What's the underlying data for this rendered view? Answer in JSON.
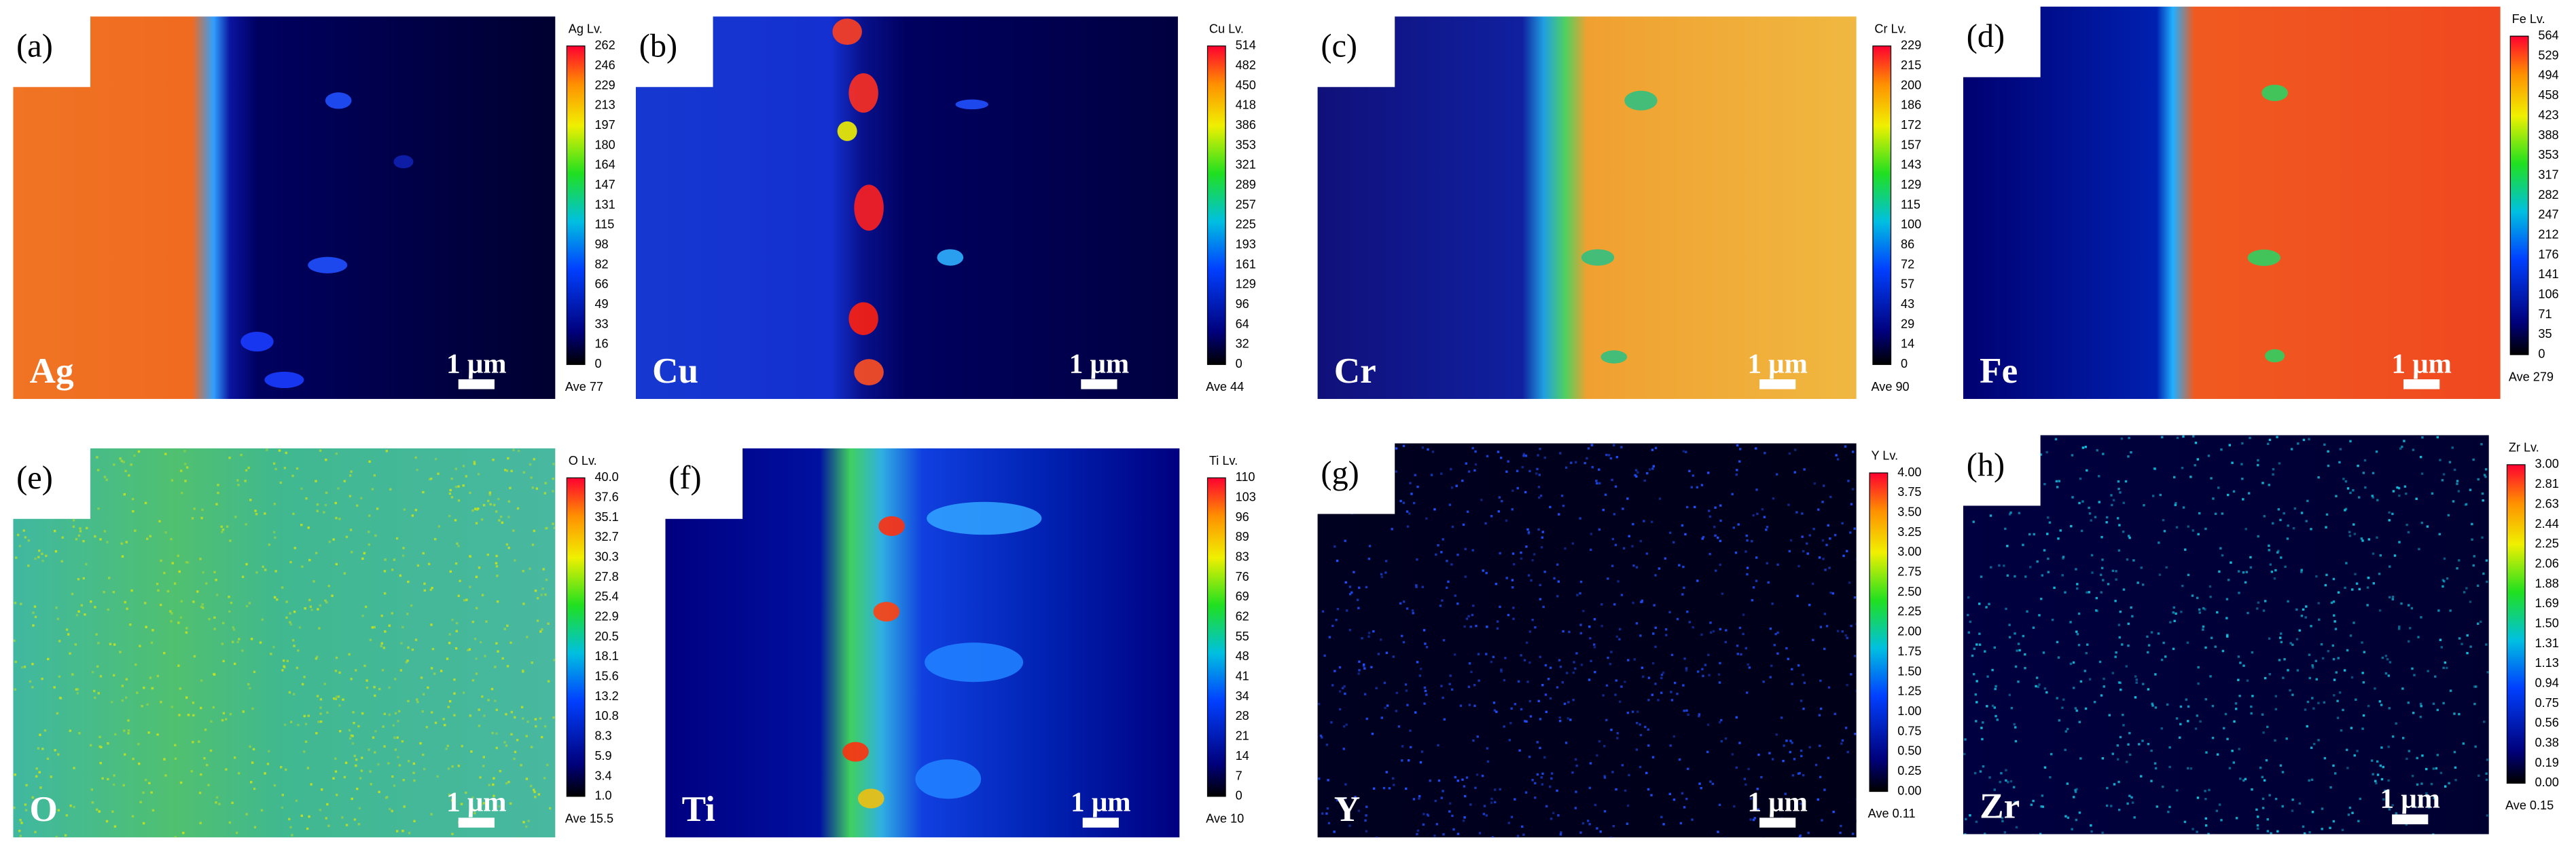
{
  "panels": [
    {
      "label": "(a)",
      "element": "Ag",
      "colorbar": {
        "title": "Ag Lv.",
        "ticks": [
          "262",
          "246",
          "229",
          "213",
          "197",
          "180",
          "164",
          "147",
          "131",
          "115",
          "98",
          "82",
          "66",
          "49",
          "33",
          "16",
          "0"
        ]
      },
      "average": "Ave 77",
      "scale_bar": "1 μm"
    },
    {
      "label": "(b)",
      "element": "Cu",
      "colorbar": {
        "title": "Cu Lv.",
        "ticks": [
          "514",
          "482",
          "450",
          "418",
          "386",
          "353",
          "321",
          "289",
          "257",
          "225",
          "193",
          "161",
          "129",
          "96",
          "64",
          "32",
          "0"
        ]
      },
      "average": "Ave 44",
      "scale_bar": "1 μm"
    },
    {
      "label": "(c)",
      "element": "Cr",
      "colorbar": {
        "title": "Cr Lv.",
        "ticks": [
          "229",
          "215",
          "200",
          "186",
          "172",
          "157",
          "143",
          "129",
          "115",
          "100",
          "86",
          "72",
          "57",
          "43",
          "29",
          "14",
          "0"
        ]
      },
      "average": "Ave 90",
      "scale_bar": "1 μm"
    },
    {
      "label": "(d)",
      "element": "Fe",
      "colorbar": {
        "title": "Fe Lv.",
        "ticks": [
          "564",
          "529",
          "494",
          "458",
          "423",
          "388",
          "353",
          "317",
          "282",
          "247",
          "212",
          "176",
          "141",
          "106",
          "71",
          "35",
          "0"
        ]
      },
      "average": "Ave 279",
      "scale_bar": "1 μm"
    },
    {
      "label": "(e)",
      "element": "O",
      "colorbar": {
        "title": "O Lv.",
        "ticks": [
          "40.0",
          "37.6",
          "35.1",
          "32.7",
          "30.3",
          "27.8",
          "25.4",
          "22.9",
          "20.5",
          "18.1",
          "15.6",
          "13.2",
          "10.8",
          "8.3",
          "5.9",
          "3.4",
          "1.0"
        ]
      },
      "average": "Ave 15.5",
      "scale_bar": "1 μm"
    },
    {
      "label": "(f)",
      "element": "Ti",
      "colorbar": {
        "title": "Ti Lv.",
        "ticks": [
          "110",
          "103",
          "96",
          "89",
          "83",
          "76",
          "69",
          "62",
          "55",
          "48",
          "41",
          "34",
          "28",
          "21",
          "14",
          "7",
          "0"
        ]
      },
      "average": "Ave 10",
      "scale_bar": "1 μm"
    },
    {
      "label": "(g)",
      "element": "Y",
      "colorbar": {
        "title": "Y Lv.",
        "ticks": [
          "4.00",
          "3.75",
          "3.50",
          "3.25",
          "3.00",
          "2.75",
          "2.50",
          "2.25",
          "2.00",
          "1.75",
          "1.50",
          "1.25",
          "1.00",
          "0.75",
          "0.50",
          "0.25",
          "0.00"
        ]
      },
      "average": "Ave 0.11",
      "scale_bar": "1 μm"
    },
    {
      "label": "(h)",
      "element": "Zr",
      "colorbar": {
        "title": "Zr Lv.",
        "ticks": [
          "3.00",
          "2.81",
          "2.63",
          "2.44",
          "2.25",
          "2.06",
          "1.88",
          "1.69",
          "1.50",
          "1.31",
          "1.13",
          "0.94",
          "0.75",
          "0.56",
          "0.38",
          "0.19",
          "0.00"
        ]
      },
      "average": "Ave 0.15",
      "scale_bar": "1 μm"
    }
  ]
}
